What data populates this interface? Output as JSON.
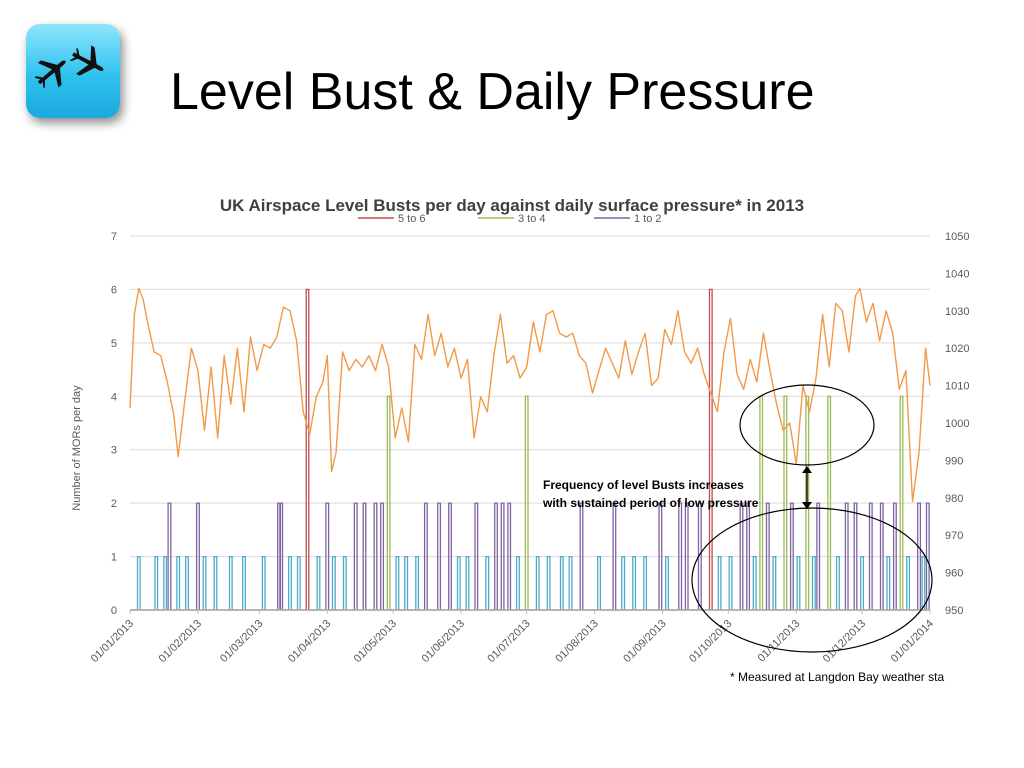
{
  "slide": {
    "title": "Level Bust & Daily Pressure",
    "icon": "airplanes-icon",
    "footnote": "* Measured at Langdon Bay weather sta"
  },
  "chart_data": {
    "type": "line",
    "title": "UK Airspace Level Busts per day against daily surface pressure* in 2013",
    "ylabel": "Number of MORs per day",
    "ylim": [
      0,
      7
    ],
    "y_ticks": [
      "0",
      "1",
      "2",
      "3",
      "4",
      "5",
      "6",
      "7"
    ],
    "y2lim": [
      950,
      1050
    ],
    "y2_ticks": [
      "950",
      "960",
      "970",
      "980",
      "990",
      "1000",
      "1010",
      "1020",
      "1030",
      "1040",
      "1050"
    ],
    "x_ticks": [
      "01/01/2013",
      "01/02/2013",
      "01/03/2013",
      "01/04/2013",
      "01/05/2013",
      "01/06/2013",
      "01/07/2013",
      "01/08/2013",
      "01/09/2013",
      "01/10/2013",
      "01/11/2013",
      "01/12/2013",
      "01/01/2014"
    ],
    "legend": {
      "position": "top",
      "entries": [
        "5 to 6",
        "3 to 4",
        "1 to 2"
      ]
    },
    "grid": true,
    "colors": {
      "pressure": "#f29a48",
      "five_to_six": "#c0504d",
      "three_to_four": "#9bbb59",
      "one_to_two": "#8064a2",
      "one": "#4bacc6"
    },
    "series": [
      {
        "name": "5 to 6",
        "axis": "left",
        "points": [
          [
            "2013-03-23",
            6
          ],
          [
            "2013-09-23",
            6
          ]
        ]
      },
      {
        "name": "3 to 4",
        "axis": "left",
        "points": [
          [
            "2013-04-29",
            4
          ],
          [
            "2013-07-01",
            4
          ],
          [
            "2013-10-16",
            4
          ],
          [
            "2013-10-27",
            4
          ],
          [
            "2013-11-06",
            4
          ],
          [
            "2013-11-16",
            4
          ],
          [
            "2013-12-19",
            4
          ]
        ]
      },
      {
        "name": "1 to 2",
        "axis": "left",
        "points": [
          [
            "2013-01-19",
            2
          ],
          [
            "2013-02-01",
            2
          ],
          [
            "2013-03-10",
            2
          ],
          [
            "2013-03-11",
            2
          ],
          [
            "2013-04-01",
            2
          ],
          [
            "2013-04-14",
            2
          ],
          [
            "2013-04-18",
            2
          ],
          [
            "2013-04-23",
            2
          ],
          [
            "2013-04-26",
            2
          ],
          [
            "2013-05-16",
            2
          ],
          [
            "2013-05-22",
            2
          ],
          [
            "2013-05-27",
            2
          ],
          [
            "2013-06-08",
            2
          ],
          [
            "2013-06-17",
            2
          ],
          [
            "2013-06-20",
            2
          ],
          [
            "2013-06-23",
            2
          ],
          [
            "2013-07-26",
            2
          ],
          [
            "2013-08-10",
            2
          ],
          [
            "2013-08-31",
            2
          ],
          [
            "2013-09-09",
            2
          ],
          [
            "2013-09-12",
            2
          ],
          [
            "2013-09-18",
            2
          ],
          [
            "2013-10-07",
            2
          ],
          [
            "2013-10-10",
            2
          ],
          [
            "2013-10-19",
            2
          ],
          [
            "2013-10-30",
            2
          ],
          [
            "2013-11-11",
            2
          ],
          [
            "2013-11-24",
            2
          ],
          [
            "2013-11-28",
            2
          ],
          [
            "2013-12-05",
            2
          ],
          [
            "2013-12-10",
            2
          ],
          [
            "2013-12-16",
            2
          ],
          [
            "2013-12-27",
            2
          ],
          [
            "2013-12-31",
            2
          ]
        ]
      },
      {
        "name": "Single MOR days",
        "axis": "left",
        "points": [
          [
            "2013-01-05",
            1
          ],
          [
            "2013-01-13",
            1
          ],
          [
            "2013-01-17",
            1
          ],
          [
            "2013-01-23",
            1
          ],
          [
            "2013-01-27",
            1
          ],
          [
            "2013-02-04",
            1
          ],
          [
            "2013-02-09",
            1
          ],
          [
            "2013-02-16",
            1
          ],
          [
            "2013-02-22",
            1
          ],
          [
            "2013-03-03",
            1
          ],
          [
            "2013-03-15",
            1
          ],
          [
            "2013-03-19",
            1
          ],
          [
            "2013-03-28",
            1
          ],
          [
            "2013-04-04",
            1
          ],
          [
            "2013-04-09",
            1
          ],
          [
            "2013-05-03",
            1
          ],
          [
            "2013-05-07",
            1
          ],
          [
            "2013-05-12",
            1
          ],
          [
            "2013-05-31",
            1
          ],
          [
            "2013-06-04",
            1
          ],
          [
            "2013-06-13",
            1
          ],
          [
            "2013-06-27",
            1
          ],
          [
            "2013-07-06",
            1
          ],
          [
            "2013-07-11",
            1
          ],
          [
            "2013-07-17",
            1
          ],
          [
            "2013-07-21",
            1
          ],
          [
            "2013-08-03",
            1
          ],
          [
            "2013-08-14",
            1
          ],
          [
            "2013-08-19",
            1
          ],
          [
            "2013-08-24",
            1
          ],
          [
            "2013-09-03",
            1
          ],
          [
            "2013-09-27",
            1
          ],
          [
            "2013-10-02",
            1
          ],
          [
            "2013-10-13",
            1
          ],
          [
            "2013-10-22",
            1
          ],
          [
            "2013-11-02",
            1
          ],
          [
            "2013-11-09",
            1
          ],
          [
            "2013-11-20",
            1
          ],
          [
            "2013-12-01",
            1
          ],
          [
            "2013-12-13",
            1
          ],
          [
            "2013-12-22",
            1
          ],
          [
            "2013-12-29",
            1
          ]
        ]
      },
      {
        "name": "Daily surface pressure",
        "axis": "right",
        "points": [
          [
            "2013-01-01",
            1004
          ],
          [
            "2013-01-03",
            1029
          ],
          [
            "2013-01-05",
            1036
          ],
          [
            "2013-01-07",
            1033
          ],
          [
            "2013-01-09",
            1027
          ],
          [
            "2013-01-12",
            1019
          ],
          [
            "2013-01-15",
            1018
          ],
          [
            "2013-01-18",
            1011
          ],
          [
            "2013-01-21",
            1002
          ],
          [
            "2013-01-23",
            991
          ],
          [
            "2013-01-26",
            1006
          ],
          [
            "2013-01-29",
            1020
          ],
          [
            "2013-02-01",
            1014
          ],
          [
            "2013-02-04",
            998
          ],
          [
            "2013-02-07",
            1015
          ],
          [
            "2013-02-10",
            996
          ],
          [
            "2013-02-13",
            1018
          ],
          [
            "2013-02-16",
            1005
          ],
          [
            "2013-02-19",
            1020
          ],
          [
            "2013-02-22",
            1003
          ],
          [
            "2013-02-25",
            1023
          ],
          [
            "2013-02-28",
            1014
          ],
          [
            "2013-03-03",
            1021
          ],
          [
            "2013-03-06",
            1020
          ],
          [
            "2013-03-09",
            1023
          ],
          [
            "2013-03-12",
            1031
          ],
          [
            "2013-03-15",
            1030
          ],
          [
            "2013-03-18",
            1022
          ],
          [
            "2013-03-21",
            1003
          ],
          [
            "2013-03-24",
            997
          ],
          [
            "2013-03-27",
            1007
          ],
          [
            "2013-03-30",
            1011
          ],
          [
            "2013-04-01",
            1018
          ],
          [
            "2013-04-03",
            987
          ],
          [
            "2013-04-05",
            992
          ],
          [
            "2013-04-08",
            1019
          ],
          [
            "2013-04-11",
            1014
          ],
          [
            "2013-04-14",
            1017
          ],
          [
            "2013-04-17",
            1015
          ],
          [
            "2013-04-20",
            1018
          ],
          [
            "2013-04-23",
            1014
          ],
          [
            "2013-04-26",
            1021
          ],
          [
            "2013-04-29",
            1015
          ],
          [
            "2013-05-02",
            996
          ],
          [
            "2013-05-05",
            1004
          ],
          [
            "2013-05-08",
            995
          ],
          [
            "2013-05-11",
            1021
          ],
          [
            "2013-05-14",
            1017
          ],
          [
            "2013-05-17",
            1029
          ],
          [
            "2013-05-20",
            1018
          ],
          [
            "2013-05-23",
            1024
          ],
          [
            "2013-05-26",
            1015
          ],
          [
            "2013-05-29",
            1020
          ],
          [
            "2013-06-01",
            1012
          ],
          [
            "2013-06-04",
            1017
          ],
          [
            "2013-06-07",
            996
          ],
          [
            "2013-06-10",
            1007
          ],
          [
            "2013-06-13",
            1003
          ],
          [
            "2013-06-16",
            1018
          ],
          [
            "2013-06-19",
            1029
          ],
          [
            "2013-06-22",
            1016
          ],
          [
            "2013-06-25",
            1018
          ],
          [
            "2013-06-28",
            1012
          ],
          [
            "2013-07-01",
            1015
          ],
          [
            "2013-07-04",
            1027
          ],
          [
            "2013-07-07",
            1019
          ],
          [
            "2013-07-10",
            1029
          ],
          [
            "2013-07-13",
            1030
          ],
          [
            "2013-07-16",
            1024
          ],
          [
            "2013-07-19",
            1023
          ],
          [
            "2013-07-22",
            1024
          ],
          [
            "2013-07-25",
            1018
          ],
          [
            "2013-07-28",
            1016
          ],
          [
            "2013-07-31",
            1008
          ],
          [
            "2013-08-03",
            1014
          ],
          [
            "2013-08-06",
            1020
          ],
          [
            "2013-08-09",
            1016
          ],
          [
            "2013-08-12",
            1012
          ],
          [
            "2013-08-15",
            1022
          ],
          [
            "2013-08-18",
            1013
          ],
          [
            "2013-08-21",
            1019
          ],
          [
            "2013-08-24",
            1024
          ],
          [
            "2013-08-27",
            1010
          ],
          [
            "2013-08-30",
            1012
          ],
          [
            "2013-09-02",
            1025
          ],
          [
            "2013-09-05",
            1021
          ],
          [
            "2013-09-08",
            1030
          ],
          [
            "2013-09-11",
            1019
          ],
          [
            "2013-09-14",
            1016
          ],
          [
            "2013-09-17",
            1020
          ],
          [
            "2013-09-20",
            1013
          ],
          [
            "2013-09-23",
            1008
          ],
          [
            "2013-09-26",
            1003
          ],
          [
            "2013-09-29",
            1019
          ],
          [
            "2013-10-02",
            1028
          ],
          [
            "2013-10-05",
            1013
          ],
          [
            "2013-10-08",
            1009
          ],
          [
            "2013-10-11",
            1017
          ],
          [
            "2013-10-14",
            1011
          ],
          [
            "2013-10-17",
            1024
          ],
          [
            "2013-10-20",
            1014
          ],
          [
            "2013-10-23",
            1005
          ],
          [
            "2013-10-26",
            998
          ],
          [
            "2013-10-29",
            1000
          ],
          [
            "2013-11-01",
            989
          ],
          [
            "2013-11-04",
            1010
          ],
          [
            "2013-11-07",
            1003
          ],
          [
            "2013-11-10",
            1012
          ],
          [
            "2013-11-13",
            1029
          ],
          [
            "2013-11-16",
            1015
          ],
          [
            "2013-11-19",
            1032
          ],
          [
            "2013-11-22",
            1030
          ],
          [
            "2013-11-25",
            1019
          ],
          [
            "2013-11-28",
            1034
          ],
          [
            "2013-11-30",
            1036
          ],
          [
            "2013-12-03",
            1027
          ],
          [
            "2013-12-06",
            1032
          ],
          [
            "2013-12-09",
            1022
          ],
          [
            "2013-12-12",
            1030
          ],
          [
            "2013-12-15",
            1024
          ],
          [
            "2013-12-18",
            1009
          ],
          [
            "2013-12-21",
            1014
          ],
          [
            "2013-12-24",
            979
          ],
          [
            "2013-12-27",
            992
          ],
          [
            "2013-12-30",
            1020
          ],
          [
            "2014-01-01",
            1010
          ]
        ]
      }
    ],
    "annotations": [
      {
        "text": [
          "Frequency of level Busts increases",
          "with sustained period of low pressure"
        ]
      }
    ]
  }
}
